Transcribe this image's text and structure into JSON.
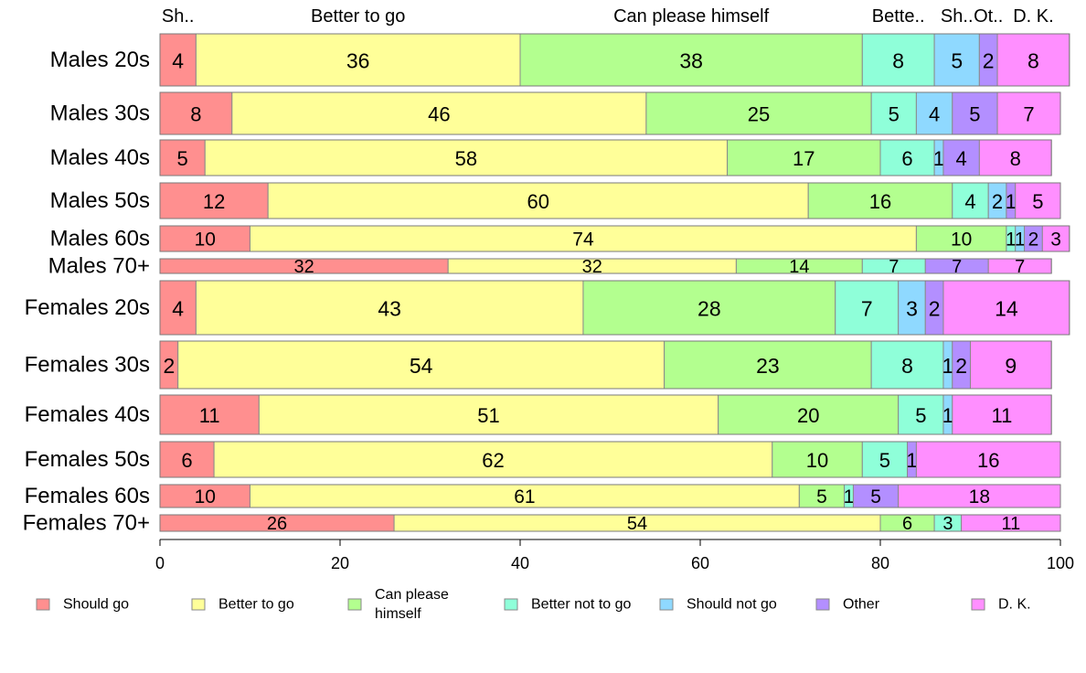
{
  "chart_data": {
    "type": "bar",
    "orientation": "horizontal",
    "stacked": true,
    "xlim": [
      0,
      100
    ],
    "x_ticks": [
      "0",
      "20",
      "40",
      "60",
      "80",
      "100"
    ],
    "top_labels": [
      "Sh..",
      "Better to go",
      "Can please himself",
      "Bette..",
      "Sh..",
      "Ot..",
      "D. K."
    ],
    "categories": [
      "Males 20s",
      "Males 30s",
      "Males 40s",
      "Males 50s",
      "Males 60s",
      "Males 70+",
      "Females 20s",
      "Females 30s",
      "Females 40s",
      "Females 50s",
      "Females 60s",
      "Females 70+"
    ],
    "series": [
      {
        "name": "Should go",
        "color": "#ff8f8f",
        "values": [
          4,
          8,
          5,
          12,
          10,
          32,
          4,
          2,
          11,
          6,
          10,
          26
        ]
      },
      {
        "name": "Better to go",
        "color": "#ffff99",
        "values": [
          36,
          46,
          58,
          60,
          74,
          32,
          43,
          54,
          51,
          62,
          61,
          54
        ]
      },
      {
        "name": "Can please himself",
        "color": "#b3ff8f",
        "values": [
          38,
          25,
          17,
          16,
          10,
          14,
          28,
          23,
          20,
          10,
          5,
          6
        ]
      },
      {
        "name": "Better not to go",
        "color": "#8fffd9",
        "values": [
          8,
          5,
          6,
          4,
          1,
          7,
          7,
          8,
          5,
          5,
          1,
          3
        ]
      },
      {
        "name": "Should not go",
        "color": "#8fd9ff",
        "values": [
          5,
          4,
          1,
          2,
          1,
          0,
          3,
          1,
          1,
          0,
          0,
          0
        ]
      },
      {
        "name": "Other",
        "color": "#b38fff",
        "values": [
          2,
          5,
          4,
          1,
          2,
          7,
          2,
          2,
          0,
          1,
          5,
          0
        ]
      },
      {
        "name": "D. K.",
        "color": "#ff8fff",
        "values": [
          8,
          7,
          8,
          5,
          3,
          7,
          14,
          9,
          11,
          16,
          18,
          11
        ]
      }
    ],
    "legend_position": "bottom"
  }
}
